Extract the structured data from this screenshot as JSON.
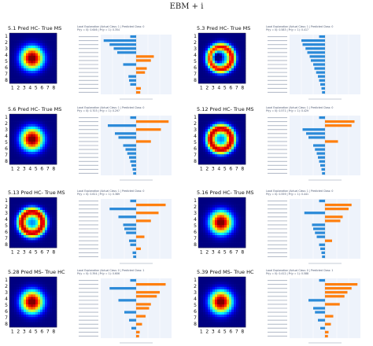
{
  "figure": {
    "title": "EBM + i"
  },
  "chart_data": [
    {
      "type": "heatmap",
      "panel": "5.1",
      "title": "5.1 Pred HC- True MS",
      "xticks": [
        "1",
        "2",
        "3",
        "4",
        "5",
        "6",
        "7",
        "8"
      ],
      "yticks": [
        "1",
        "2",
        "3",
        "4",
        "5",
        "6",
        "7",
        "8"
      ],
      "pattern": "blob",
      "explanation": {
        "title": "Local Explanation (Actual Class: 1 | Predicted Class: 0",
        "subtitle": "Pr(y = 0): 0.646 | Pr(y = 1): 0.354"
      },
      "contributions": [
        -0.1,
        -0.55,
        -0.45,
        -0.38,
        -0.32,
        0.3,
        0.25,
        -0.22,
        0.18,
        0.15,
        -0.13,
        -0.12,
        -0.1,
        0.08,
        0.07
      ],
      "xlim": [
        -0.6,
        0.6
      ]
    },
    {
      "type": "heatmap",
      "panel": "5.3",
      "title": "5.3 Pred HC- True MS",
      "xticks": [
        "1",
        "2",
        "3",
        "4",
        "5",
        "6",
        "7",
        "8"
      ],
      "yticks": [
        "1",
        "2",
        "3",
        "4",
        "5",
        "6",
        "7",
        "8"
      ],
      "pattern": "ring-blue",
      "explanation": {
        "title": "Local Explanation (Actual Class: 1 | Predicted Class: 0",
        "subtitle": "Pr(y = 0): 0.583 | Pr(y = 1): 0.417"
      },
      "contributions": [
        -0.1,
        -0.4,
        -0.38,
        -0.33,
        -0.3,
        -0.26,
        -0.24,
        -0.2,
        -0.18,
        -0.15,
        -0.12,
        -0.1,
        -0.08,
        -0.06,
        -0.05
      ],
      "xlim": [
        -0.6,
        0.6
      ]
    },
    {
      "type": "heatmap",
      "panel": "5.6",
      "title": "5.6 Pred HC- True MS",
      "xticks": [
        "1",
        "2",
        "3",
        "4",
        "5",
        "6",
        "7",
        "8"
      ],
      "yticks": [
        "1",
        "2",
        "3",
        "4",
        "5",
        "6",
        "7",
        "8"
      ],
      "pattern": "blob",
      "explanation": {
        "title": "Local Explanation (Actual Class: 1 | Predicted Class: 0",
        "subtitle": "Pr(y = 0): 0.703 | Pr(y = 1): 0.297"
      },
      "contributions": [
        -0.1,
        0.55,
        -0.48,
        0.42,
        -0.36,
        -0.3,
        0.25,
        -0.22,
        -0.18,
        -0.15,
        -0.12,
        -0.1,
        -0.08,
        -0.06,
        -0.05
      ],
      "xlim": [
        -0.6,
        0.6
      ]
    },
    {
      "type": "heatmap",
      "panel": "5.12",
      "title": "5.12 Pred HC- True MS",
      "xticks": [
        "1",
        "2",
        "3",
        "4",
        "5",
        "6",
        "7",
        "8"
      ],
      "yticks": [
        "1",
        "2",
        "3",
        "4",
        "5",
        "6",
        "7",
        "8"
      ],
      "pattern": "ring",
      "explanation": {
        "title": "Local Explanation (Actual Class: 1 | Predicted Class: 0",
        "subtitle": "Pr(y = 0): 0.571 | Pr(y = 1): 0.429"
      },
      "contributions": [
        -0.1,
        0.5,
        0.45,
        -0.38,
        -0.32,
        -0.28,
        0.22,
        -0.2,
        -0.17,
        -0.14,
        -0.12,
        -0.1,
        -0.08,
        -0.06,
        -0.05
      ],
      "xlim": [
        -0.6,
        0.6
      ]
    },
    {
      "type": "heatmap",
      "panel": "5.13",
      "title": "5.13 Pred HC- True MS",
      "xticks": [
        "1",
        "2",
        "3",
        "4",
        "5",
        "6",
        "7",
        "8"
      ],
      "yticks": [
        "1",
        "2",
        "3",
        "4",
        "5",
        "6",
        "7",
        "8"
      ],
      "pattern": "ring",
      "explanation": {
        "title": "Local Explanation (Actual Class: 1 | Predicted Class: 0",
        "subtitle": "Pr(y = 0): 0.611 | Pr(y = 1): 0.389"
      },
      "contributions": [
        -0.1,
        0.5,
        -0.45,
        0.38,
        -0.3,
        0.25,
        -0.22,
        -0.2,
        -0.17,
        0.14,
        -0.12,
        -0.1,
        0.08,
        -0.06,
        -0.05
      ],
      "xlim": [
        -0.6,
        0.6
      ]
    },
    {
      "type": "heatmap",
      "panel": "5.16",
      "title": "5.16 Pred HC- True MS",
      "xticks": [
        "1",
        "2",
        "3",
        "4",
        "5",
        "6",
        "7",
        "8"
      ],
      "yticks": [
        "1",
        "2",
        "3",
        "4",
        "5",
        "6",
        "7",
        "8"
      ],
      "pattern": "blob",
      "explanation": {
        "title": "Local Explanation (Actual Class: 1 | Predicted Class: 0",
        "subtitle": "Pr(y = 0): 0.559 | Pr(y = 1): 0.441"
      },
      "contributions": [
        -0.1,
        0.45,
        0.4,
        -0.35,
        0.3,
        0.26,
        -0.22,
        -0.2,
        -0.17,
        -0.14,
        0.12,
        -0.1,
        -0.08,
        -0.06,
        -0.05
      ],
      "xlim": [
        -0.6,
        0.6
      ]
    },
    {
      "type": "heatmap",
      "panel": "5.28",
      "title": "5.28 Pred MS- True HC",
      "xticks": [
        "1",
        "2",
        "3",
        "4",
        "5",
        "6",
        "7",
        "8"
      ],
      "yticks": [
        "1",
        "2",
        "3",
        "4",
        "5",
        "6",
        "7",
        "8"
      ],
      "pattern": "blob",
      "explanation": {
        "title": "Local Explanation (Actual Class: 0 | Predicted Class: 1",
        "subtitle": "Pr(y = 0): 0.394 | Pr(y = 1): 0.606"
      },
      "contributions": [
        -0.1,
        0.5,
        -0.45,
        0.4,
        0.35,
        -0.3,
        0.25,
        0.22,
        -0.2,
        0.16,
        -0.12,
        0.1,
        -0.08,
        0.06,
        0.05
      ],
      "xlim": [
        -0.6,
        0.6
      ]
    },
    {
      "type": "heatmap",
      "panel": "5.39",
      "title": "5.39 Pred MS- True HC",
      "xticks": [
        "1",
        "2",
        "3",
        "4",
        "5",
        "6",
        "7",
        "8"
      ],
      "yticks": [
        "1",
        "2",
        "3",
        "4",
        "5",
        "6",
        "7",
        "8"
      ],
      "pattern": "blob",
      "explanation": {
        "title": "Local Explanation (Actual Class: 0 | Predicted Class: 1",
        "subtitle": "Pr(y = 0): 0.412 | Pr(y = 1): 0.588"
      },
      "contributions": [
        -0.1,
        0.55,
        0.45,
        0.38,
        0.33,
        -0.28,
        0.25,
        -0.2,
        -0.17,
        0.14,
        -0.12,
        0.1,
        -0.08,
        0.06,
        0.05
      ],
      "xlim": [
        -0.6,
        0.6
      ]
    }
  ]
}
